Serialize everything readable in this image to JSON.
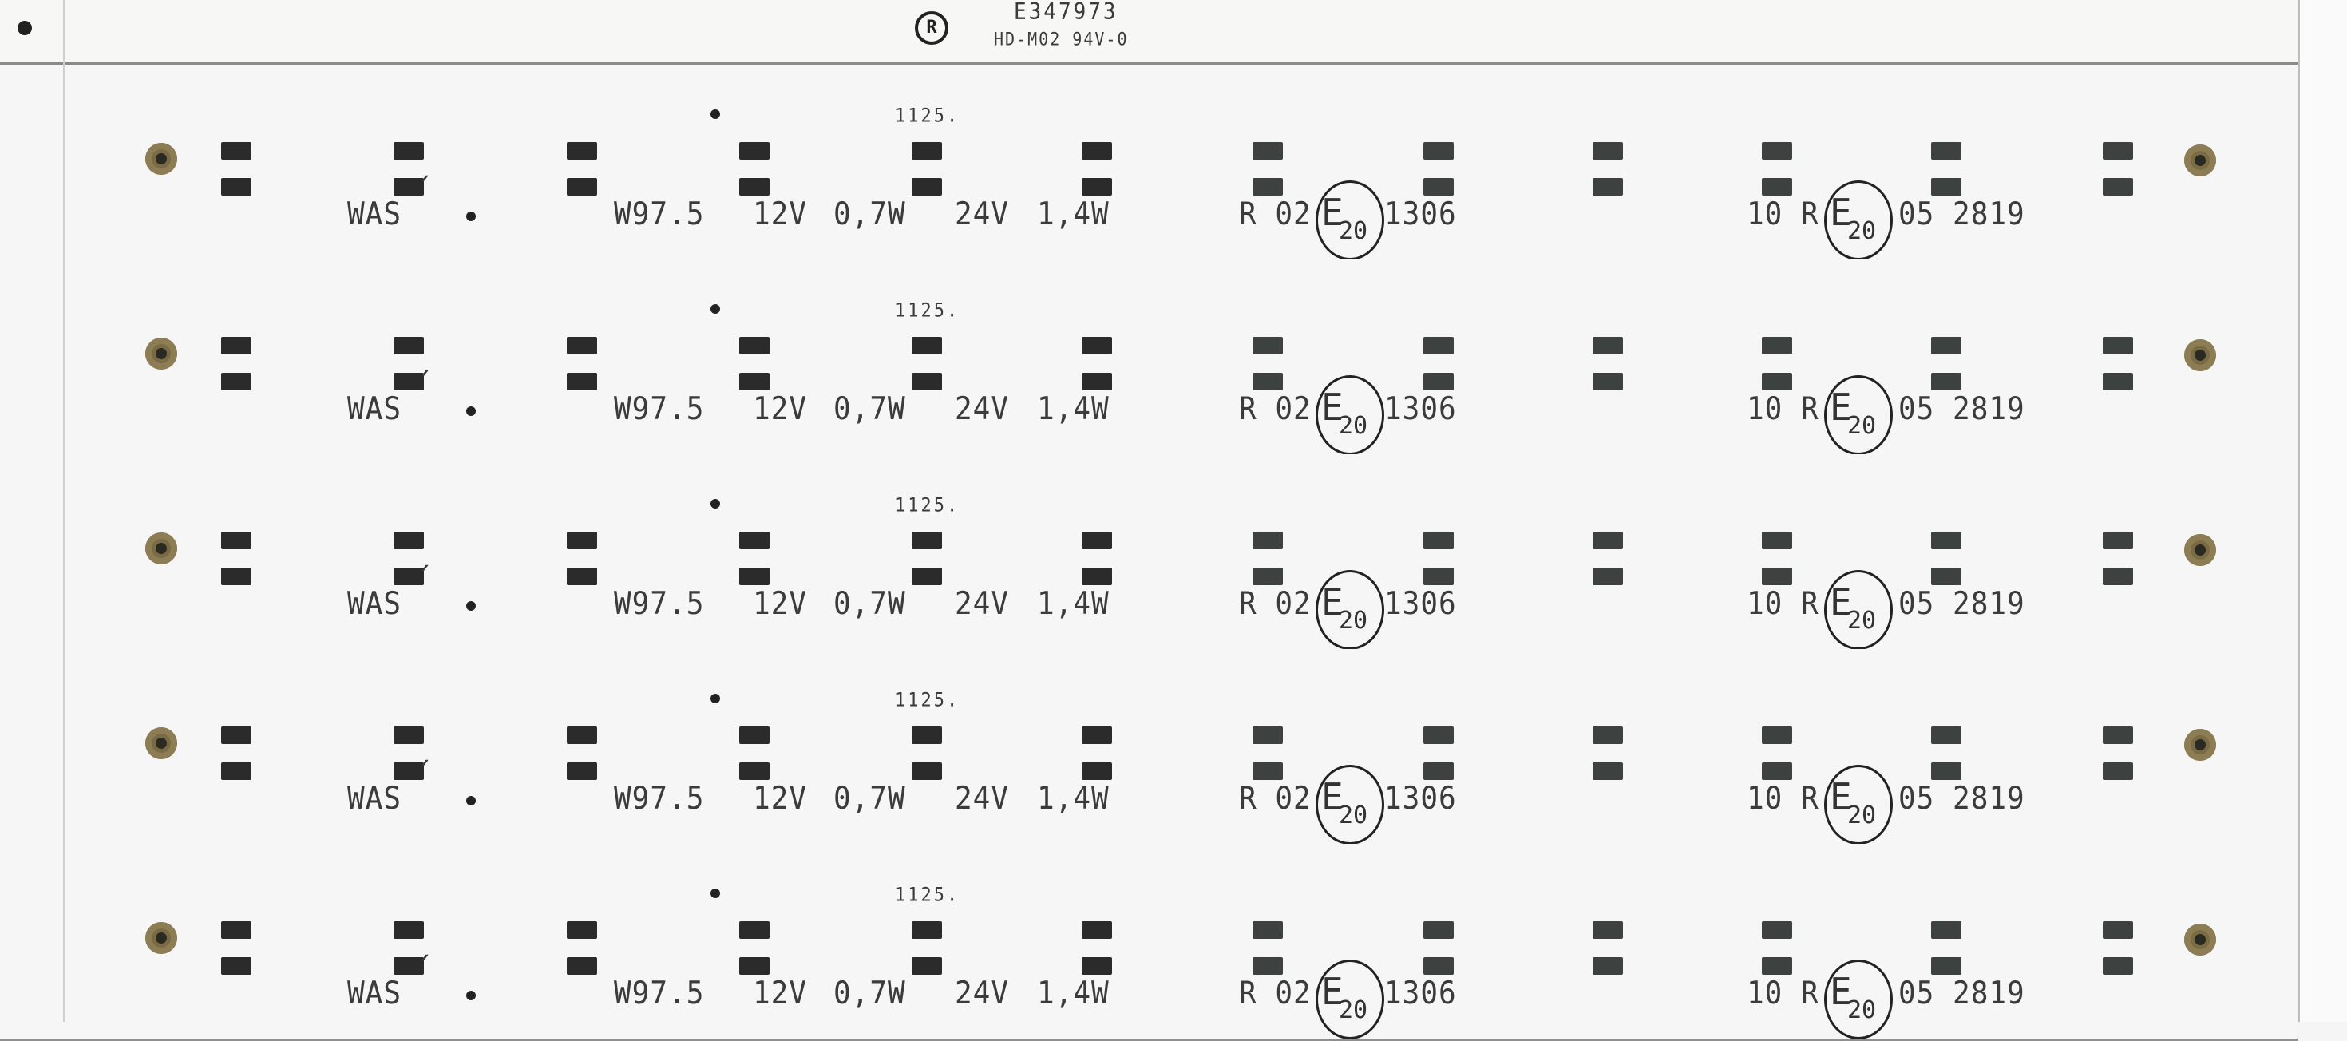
{
  "top": {
    "logo_icon": "ul-recognized-component-mark",
    "marking_1": "E347973",
    "marking_2": "HD-M02 94V-0"
  },
  "board_count": 5,
  "board": {
    "was": "WAS",
    "accent": "´",
    "mark": "1125.",
    "model": "W97.5",
    "v12": "12V",
    "p12": "0,7W",
    "v24": "24V",
    "p24": "1,4W",
    "code_a_prefix": "R 02",
    "e_letter": "E",
    "e_number": "20",
    "code_a_suffix": "1306",
    "code_b_prefix": "10 R",
    "code_b_suffix": "05 2819"
  },
  "colors": {
    "board": "#f5f6f5",
    "pad": "#2b2b2b",
    "hole": "#7a6b45",
    "silkscreen": "#3b3b3b"
  }
}
